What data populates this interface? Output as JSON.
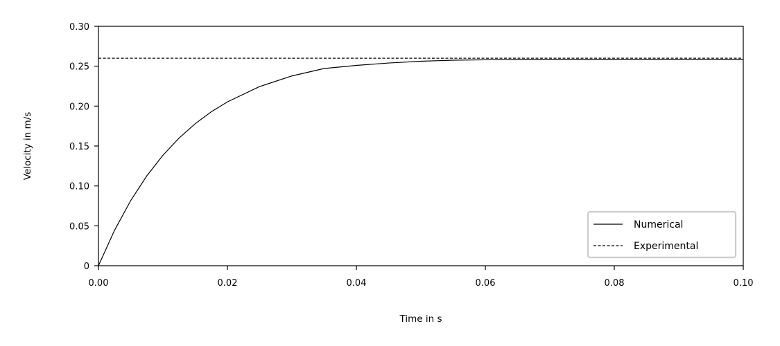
{
  "chart_data": {
    "type": "line",
    "title": "",
    "xlabel": "Time in s",
    "ylabel": "Velocity in m/s",
    "xlim": [
      0,
      0.1
    ],
    "ylim": [
      0,
      0.3
    ],
    "xticks": [
      "0.00",
      "0.02",
      "0.04",
      "0.06",
      "0.08",
      "0.10"
    ],
    "xtick_values": [
      0,
      0.02,
      0.04,
      0.06,
      0.08,
      0.1
    ],
    "yticks": [
      "0",
      "0.05",
      "0.10",
      "0.15",
      "0.20",
      "0.25",
      "0.30"
    ],
    "ytick_values": [
      0,
      0.05,
      0.1,
      0.15,
      0.2,
      0.25,
      0.3
    ],
    "grid": false,
    "legend_position": "lower-right",
    "series": [
      {
        "name": "Numerical",
        "style": "solid",
        "color": "#000000",
        "x": [
          0,
          0.0025,
          0.005,
          0.0075,
          0.01,
          0.0125,
          0.015,
          0.0175,
          0.02,
          0.025,
          0.03,
          0.035,
          0.04,
          0.045,
          0.05,
          0.055,
          0.06,
          0.065,
          0.07,
          0.08,
          0.09,
          0.1
        ],
        "y": [
          0,
          0.0445,
          0.0816,
          0.1126,
          0.1384,
          0.1599,
          0.1779,
          0.1929,
          0.2053,
          0.2245,
          0.2378,
          0.2471,
          0.251,
          0.254,
          0.2562,
          0.2575,
          0.258,
          0.2583,
          0.2585,
          0.2586,
          0.2586,
          0.2586
        ]
      },
      {
        "name": "Experimental",
        "style": "dashed",
        "color": "#000000",
        "x": [
          0,
          0.1
        ],
        "y": [
          0.26,
          0.26
        ]
      }
    ]
  }
}
